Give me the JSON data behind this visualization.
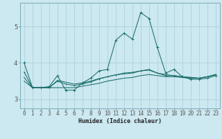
{
  "xlabel": "Humidex (Indice chaleur)",
  "background_color": "#cce8f0",
  "grid_color": "#aaccd8",
  "line_color": "#1a6e6a",
  "x_ticks": [
    0,
    1,
    2,
    3,
    4,
    5,
    6,
    7,
    8,
    9,
    10,
    11,
    12,
    13,
    14,
    15,
    16,
    17,
    18,
    19,
    20,
    21,
    22,
    23
  ],
  "y_ticks": [
    3,
    4,
    5
  ],
  "ylim": [
    2.75,
    5.65
  ],
  "xlim": [
    -0.5,
    23.5
  ],
  "series0": [
    4.0,
    3.32,
    3.32,
    3.35,
    3.65,
    3.25,
    3.25,
    3.45,
    3.58,
    3.78,
    3.82,
    4.62,
    4.82,
    4.65,
    5.38,
    5.22,
    4.42,
    3.72,
    3.82,
    3.62,
    3.55,
    3.55,
    3.58,
    3.65
  ],
  "series1": [
    3.75,
    3.32,
    3.32,
    3.32,
    3.5,
    3.42,
    3.38,
    3.42,
    3.48,
    3.56,
    3.62,
    3.67,
    3.72,
    3.74,
    3.78,
    3.82,
    3.72,
    3.65,
    3.65,
    3.62,
    3.6,
    3.58,
    3.62,
    3.68
  ],
  "series2": [
    3.6,
    3.32,
    3.32,
    3.32,
    3.32,
    3.32,
    3.32,
    3.36,
    3.4,
    3.44,
    3.5,
    3.54,
    3.58,
    3.6,
    3.65,
    3.68,
    3.65,
    3.62,
    3.62,
    3.6,
    3.58,
    3.58,
    3.62,
    3.68
  ],
  "series3": [
    3.5,
    3.32,
    3.32,
    3.32,
    3.52,
    3.47,
    3.42,
    3.45,
    3.5,
    3.57,
    3.62,
    3.67,
    3.7,
    3.72,
    3.78,
    3.8,
    3.72,
    3.68,
    3.65,
    3.62,
    3.6,
    3.58,
    3.62,
    3.68
  ],
  "tick_fontsize": 5.5,
  "xlabel_fontsize": 6.0
}
